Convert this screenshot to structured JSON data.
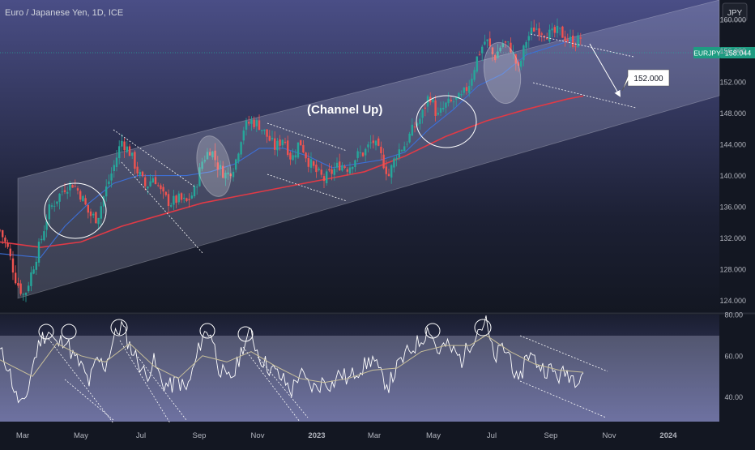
{
  "header": {
    "title": "Euro / Japanese Yen, 1D, ICE",
    "currency_button": "JPY"
  },
  "annotations": {
    "channel_label": "(Channel Up)",
    "target_label": "152.000"
  },
  "price_badge": {
    "symbol": "EURJPY",
    "price": "158.044"
  },
  "colors": {
    "background_top": "#4a4e86",
    "background_bottom": "#131722",
    "candle_up": "#26a69a",
    "candle_down": "#ef5350",
    "ma_long": "#e03a46",
    "ma_short": "#3d6fd6",
    "badge": "#1e9c82",
    "rsi_line": "#ffffff",
    "rsi_ma": "#c8bf9a"
  },
  "chart_data": {
    "type": "candlestick",
    "price_axis": {
      "min": 122.5,
      "max": 162.5,
      "ticks": [
        "124.000",
        "128.000",
        "132.000",
        "136.000",
        "140.000",
        "144.000",
        "148.000",
        "152.000",
        "156.000",
        "160.000"
      ]
    },
    "rsi_axis": {
      "min": 28,
      "max": 80,
      "ticks": [
        "80.00",
        "60.00",
        "40.00"
      ]
    },
    "time_axis": {
      "labels": [
        "Mar",
        "May",
        "Jul",
        "Sep",
        "Nov",
        "2023",
        "Mar",
        "May",
        "Jul",
        "Sep",
        "Nov",
        "2024"
      ]
    },
    "current_price": 158.044,
    "target_price": 152.0,
    "price_path": [
      [
        0,
        133
      ],
      [
        10,
        130.5
      ],
      [
        20,
        126.5
      ],
      [
        30,
        124.5
      ],
      [
        40,
        128
      ],
      [
        50,
        131.5
      ],
      [
        60,
        135.5
      ],
      [
        70,
        137
      ],
      [
        80,
        138.5
      ],
      [
        90,
        139
      ],
      [
        100,
        137.5
      ],
      [
        110,
        135
      ],
      [
        120,
        134.5
      ],
      [
        130,
        138
      ],
      [
        140,
        141
      ],
      [
        150,
        144.5
      ],
      [
        160,
        143
      ],
      [
        170,
        140.5
      ],
      [
        180,
        138.5
      ],
      [
        190,
        140
      ],
      [
        200,
        137.5
      ],
      [
        210,
        136.5
      ],
      [
        220,
        137
      ],
      [
        230,
        136.5
      ],
      [
        240,
        138
      ],
      [
        250,
        142
      ],
      [
        260,
        143.5
      ],
      [
        270,
        141
      ],
      [
        280,
        140
      ],
      [
        290,
        141.5
      ],
      [
        300,
        146
      ],
      [
        310,
        147
      ],
      [
        320,
        146.5
      ],
      [
        330,
        145
      ],
      [
        340,
        143.5
      ],
      [
        350,
        145
      ],
      [
        360,
        142
      ],
      [
        370,
        144.5
      ],
      [
        380,
        142
      ],
      [
        390,
        140.5
      ],
      [
        400,
        139.5
      ],
      [
        410,
        140.5
      ],
      [
        420,
        141.5
      ],
      [
        430,
        141
      ],
      [
        440,
        142.5
      ],
      [
        450,
        143
      ],
      [
        460,
        144.5
      ],
      [
        470,
        142.5
      ],
      [
        480,
        140
      ],
      [
        490,
        143
      ],
      [
        500,
        144
      ],
      [
        510,
        146
      ],
      [
        520,
        147.5
      ],
      [
        530,
        150.5
      ],
      [
        540,
        147.5
      ],
      [
        550,
        149
      ],
      [
        560,
        149.5
      ],
      [
        570,
        150
      ],
      [
        580,
        152
      ],
      [
        590,
        155.5
      ],
      [
        600,
        157.5
      ],
      [
        610,
        155
      ],
      [
        620,
        157
      ],
      [
        630,
        156.5
      ],
      [
        640,
        153.5
      ],
      [
        650,
        157.5
      ],
      [
        660,
        159
      ],
      [
        670,
        158.5
      ],
      [
        680,
        158
      ],
      [
        690,
        158.5
      ],
      [
        700,
        157.5
      ],
      [
        710,
        157
      ],
      [
        720,
        158
      ]
    ],
    "ma_long_path": [
      [
        0,
        131.5
      ],
      [
        50,
        130.8
      ],
      [
        100,
        131.5
      ],
      [
        150,
        133.5
      ],
      [
        200,
        135
      ],
      [
        250,
        136.5
      ],
      [
        300,
        137.5
      ],
      [
        350,
        138.5
      ],
      [
        400,
        139.5
      ],
      [
        450,
        140.5
      ],
      [
        500,
        142.5
      ],
      [
        550,
        145
      ],
      [
        600,
        147
      ],
      [
        650,
        148.5
      ],
      [
        700,
        149.8
      ],
      [
        720,
        150.2
      ]
    ],
    "ma_short_path": [
      [
        0,
        130
      ],
      [
        50,
        129.5
      ],
      [
        80,
        133.5
      ],
      [
        110,
        136.5
      ],
      [
        140,
        139
      ],
      [
        170,
        140
      ],
      [
        200,
        140
      ],
      [
        230,
        140
      ],
      [
        260,
        140.5
      ],
      [
        290,
        141.5
      ],
      [
        320,
        143.5
      ],
      [
        350,
        143.5
      ],
      [
        380,
        142.5
      ],
      [
        410,
        141
      ],
      [
        440,
        141.5
      ],
      [
        470,
        142
      ],
      [
        500,
        143
      ],
      [
        530,
        146
      ],
      [
        560,
        148.5
      ],
      [
        590,
        151.5
      ],
      [
        620,
        153
      ],
      [
        650,
        155.5
      ],
      [
        680,
        156.5
      ],
      [
        710,
        157.5
      ]
    ],
    "rsi_path": [
      [
        0,
        62
      ],
      [
        10,
        55
      ],
      [
        20,
        40
      ],
      [
        30,
        35
      ],
      [
        40,
        55
      ],
      [
        50,
        68
      ],
      [
        60,
        72
      ],
      [
        70,
        65
      ],
      [
        80,
        69
      ],
      [
        90,
        60
      ],
      [
        100,
        55
      ],
      [
        110,
        47
      ],
      [
        120,
        58
      ],
      [
        130,
        55
      ],
      [
        140,
        68
      ],
      [
        150,
        75
      ],
      [
        160,
        65
      ],
      [
        170,
        58
      ],
      [
        180,
        50
      ],
      [
        190,
        57
      ],
      [
        200,
        47
      ],
      [
        210,
        45
      ],
      [
        220,
        48
      ],
      [
        230,
        43
      ],
      [
        240,
        55
      ],
      [
        250,
        70
      ],
      [
        260,
        72
      ],
      [
        270,
        55
      ],
      [
        280,
        48
      ],
      [
        290,
        52
      ],
      [
        300,
        65
      ],
      [
        310,
        71
      ],
      [
        320,
        60
      ],
      [
        330,
        55
      ],
      [
        340,
        52
      ],
      [
        350,
        48
      ],
      [
        360,
        43
      ],
      [
        370,
        52
      ],
      [
        380,
        46
      ],
      [
        390,
        44
      ],
      [
        400,
        48
      ],
      [
        410,
        46
      ],
      [
        420,
        52
      ],
      [
        430,
        48
      ],
      [
        440,
        53
      ],
      [
        450,
        55
      ],
      [
        460,
        59
      ],
      [
        470,
        50
      ],
      [
        480,
        46
      ],
      [
        490,
        54
      ],
      [
        500,
        60
      ],
      [
        510,
        64
      ],
      [
        520,
        68
      ],
      [
        530,
        74
      ],
      [
        540,
        62
      ],
      [
        550,
        65
      ],
      [
        560,
        62
      ],
      [
        570,
        58
      ],
      [
        580,
        66
      ],
      [
        590,
        73
      ],
      [
        600,
        76
      ],
      [
        610,
        58
      ],
      [
        620,
        64
      ],
      [
        630,
        60
      ],
      [
        640,
        44
      ],
      [
        650,
        62
      ],
      [
        660,
        58
      ],
      [
        670,
        54
      ],
      [
        680,
        53
      ],
      [
        690,
        50
      ],
      [
        700,
        52
      ],
      [
        710,
        49
      ],
      [
        720,
        53
      ]
    ],
    "rsi_ma_path": [
      [
        0,
        58
      ],
      [
        40,
        50
      ],
      [
        70,
        66
      ],
      [
        100,
        60
      ],
      [
        130,
        57
      ],
      [
        160,
        66
      ],
      [
        190,
        55
      ],
      [
        220,
        49
      ],
      [
        250,
        60
      ],
      [
        280,
        57
      ],
      [
        310,
        62
      ],
      [
        340,
        55
      ],
      [
        370,
        49
      ],
      [
        400,
        47
      ],
      [
        430,
        49
      ],
      [
        460,
        53
      ],
      [
        490,
        54
      ],
      [
        520,
        62
      ],
      [
        550,
        65
      ],
      [
        580,
        65
      ],
      [
        600,
        70
      ],
      [
        630,
        62
      ],
      [
        660,
        56
      ],
      [
        690,
        53
      ],
      [
        720,
        52
      ]
    ],
    "grid": false,
    "legend": "none"
  }
}
